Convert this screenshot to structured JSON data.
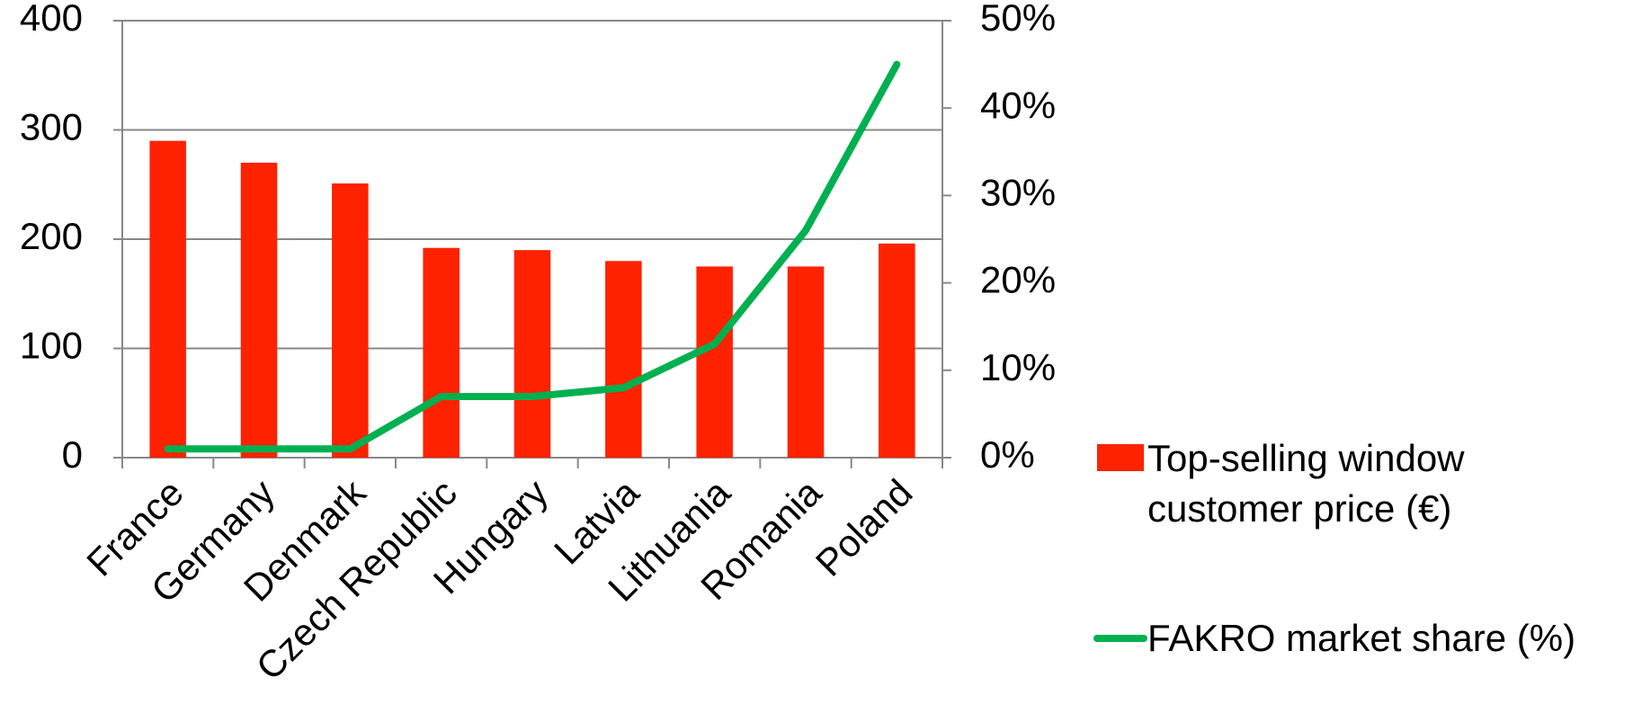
{
  "chart_data": {
    "type": "bar_line",
    "categories": [
      "France",
      "Germany",
      "Denmark",
      "Czech Republic",
      "Hungary",
      "Latvia",
      "Lithuania",
      "Romania",
      "Poland"
    ],
    "series": [
      {
        "name": "Top-selling window customer price (€)",
        "color": "#ff2200",
        "type": "bar",
        "values": [
          290,
          270,
          251,
          192,
          190,
          180,
          175,
          175,
          196
        ]
      },
      {
        "name": "FAKRO market share (%)",
        "color": "#00b050",
        "type": "line",
        "axis": "y2",
        "values": [
          1,
          1,
          1,
          7,
          7,
          8,
          13,
          26,
          45
        ]
      }
    ],
    "ylim": [
      0,
      400
    ],
    "yticks": [
      0,
      100,
      200,
      300,
      400
    ],
    "y2lim": [
      0,
      50
    ],
    "y2ticks": [
      {
        "value": 0,
        "label": "0%"
      },
      {
        "value": 10,
        "label": "10%"
      },
      {
        "value": 20,
        "label": "20%"
      },
      {
        "value": 30,
        "label": "30%"
      },
      {
        "value": 40,
        "label": "40%"
      },
      {
        "value": 50,
        "label": "50%"
      }
    ],
    "grid": true,
    "legend": "right"
  }
}
